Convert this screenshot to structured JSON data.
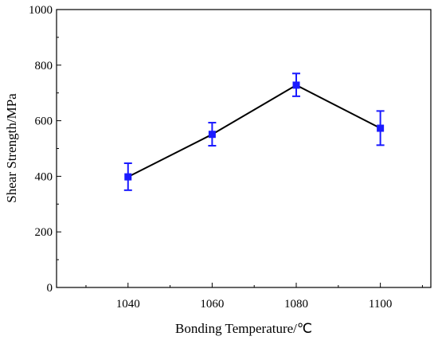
{
  "chart_data": {
    "type": "line",
    "xlabel": "Bonding Temperature/℃",
    "ylabel": "Shear Strength/MPa",
    "x": [
      1040,
      1060,
      1080,
      1100
    ],
    "x_ticks": [
      "1040",
      "1060",
      "1080",
      "1100"
    ],
    "xlim": [
      1023,
      1112
    ],
    "ylim": [
      0,
      1000
    ],
    "y_ticks": [
      "0",
      "200",
      "400",
      "600",
      "800",
      "1000"
    ],
    "series": [
      {
        "values": [
          398,
          551,
          728,
          573
        ],
        "error_low": [
          350,
          510,
          688,
          512
        ],
        "error_high": [
          447,
          593,
          770,
          635
        ],
        "line_color": "#000000",
        "marker_color": "#1a1aff",
        "error_color": "#1a1aff"
      }
    ],
    "grid": false,
    "legend": "none"
  }
}
